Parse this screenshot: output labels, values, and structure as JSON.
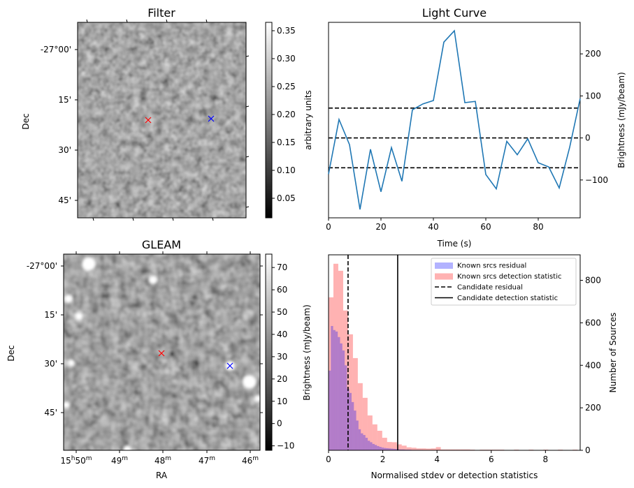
{
  "chart_data": [
    {
      "type": "heatmap",
      "title": "Filter",
      "xlabel": "",
      "ylabel": "Dec",
      "ytick_labels": [
        "-27°00'",
        "15'",
        "30'",
        "45'"
      ],
      "colorbar": {
        "label": "arbitrary units",
        "range": [
          0.015,
          0.365
        ],
        "ticks": [
          0.05,
          0.1,
          0.15,
          0.2,
          0.25,
          0.3,
          0.35
        ],
        "tick_labels": [
          "0.05",
          "0.10",
          "0.15",
          "0.20",
          "0.25",
          "0.30",
          "0.35"
        ],
        "colormap": "gray"
      },
      "markers": [
        {
          "name": "candidate",
          "symbol": "x",
          "color": "#ff0000"
        },
        {
          "name": "reference",
          "symbol": "x",
          "color": "#0000ff"
        }
      ]
    },
    {
      "type": "line",
      "title": "Light Curve",
      "xlabel": "Time (s)",
      "ylabel": "Brightness (mJy/beam)",
      "xlim": [
        0,
        96
      ],
      "ylim": [
        -190,
        275
      ],
      "xticks": [
        0,
        20,
        40,
        60,
        80
      ],
      "xtick_labels": [
        "0",
        "20",
        "40",
        "60",
        "80"
      ],
      "yticks": [
        -100,
        0,
        100,
        200
      ],
      "ytick_labels": [
        "−100",
        "0",
        "100",
        "200"
      ],
      "yaxis_side": "right",
      "grid": false,
      "series": [
        {
          "name": "light-curve",
          "color": "#1f77b4",
          "x": [
            0,
            4,
            8,
            12,
            16,
            20,
            24,
            28,
            32,
            36,
            40,
            44,
            48,
            52,
            56,
            60,
            64,
            68,
            72,
            76,
            80,
            84,
            88,
            92,
            96
          ],
          "y": [
            -86,
            44,
            -16,
            -170,
            -27,
            -128,
            -23,
            -103,
            67,
            81,
            89,
            228,
            255,
            84,
            87,
            -87,
            -121,
            -8,
            -40,
            -2,
            -59,
            -69,
            -119,
            -22,
            94
          ]
        }
      ],
      "hlines": [
        {
          "name": "upper-threshold",
          "y": 71,
          "style": "dashed",
          "color": "#000000"
        },
        {
          "name": "mean",
          "y": 0,
          "style": "dashed",
          "color": "#000000"
        },
        {
          "name": "lower-threshold",
          "y": -71,
          "style": "dashed",
          "color": "#000000"
        }
      ]
    },
    {
      "type": "heatmap",
      "title": "GLEAM",
      "xlabel": "RA",
      "ylabel": "Dec",
      "xtick_labels": [
        {
          "base": "15",
          "sup1": "h",
          "mid": "50",
          "sup2": "m"
        },
        {
          "base": "",
          "sup1": "",
          "mid": "49",
          "sup2": "m"
        },
        {
          "base": "",
          "sup1": "",
          "mid": "48",
          "sup2": "m"
        },
        {
          "base": "",
          "sup1": "",
          "mid": "47",
          "sup2": "m"
        },
        {
          "base": "",
          "sup1": "",
          "mid": "46",
          "sup2": "m"
        }
      ],
      "ytick_labels": [
        "-27°00'",
        "15'",
        "30'",
        "45'"
      ],
      "colorbar": {
        "label": "Brightness (mJy/beam)",
        "range": [
          -12,
          76
        ],
        "ticks": [
          -10,
          0,
          10,
          20,
          30,
          40,
          50,
          60,
          70
        ],
        "tick_labels": [
          "−10",
          "0",
          "10",
          "20",
          "30",
          "40",
          "50",
          "60",
          "70"
        ],
        "colormap": "gray"
      },
      "markers": [
        {
          "name": "candidate",
          "symbol": "x",
          "color": "#ff0000"
        },
        {
          "name": "reference",
          "symbol": "x",
          "color": "#0000ff"
        }
      ]
    },
    {
      "type": "bar",
      "subtype": "histogram",
      "title": "",
      "xlabel": "Normalised stdev or detection statistics",
      "ylabel": "Number of Sources",
      "xlim": [
        0,
        9.28
      ],
      "ylim": [
        0,
        920
      ],
      "xticks": [
        0,
        2,
        4,
        6,
        8
      ],
      "xtick_labels": [
        "0",
        "2",
        "4",
        "6",
        "8"
      ],
      "yticks": [
        0,
        200,
        400,
        600,
        800
      ],
      "ytick_labels": [
        "0",
        "200",
        "400",
        "600",
        "800"
      ],
      "yaxis_side": "right",
      "legend_position": "top-right",
      "series": [
        {
          "name": "Known srcs residual",
          "color": "#0000ff",
          "alpha": 0.3,
          "bin_width": 0.085,
          "bin_start": 0,
          "values": [
            375,
            585,
            566,
            559,
            533,
            503,
            470,
            400,
            290,
            270,
            227,
            187,
            140,
            99,
            80,
            72,
            59,
            45,
            38,
            30,
            25,
            20,
            16,
            13,
            11,
            10,
            9,
            8,
            7,
            6,
            5,
            4,
            4,
            3,
            3,
            3,
            2,
            2,
            2,
            2,
            2,
            1,
            1,
            1,
            1,
            1
          ]
        },
        {
          "name": "Known srcs detection statistic",
          "color": "#ff0000",
          "alpha": 0.3,
          "bin_width": 0.18,
          "bin_start": 0,
          "values": [
            720,
            878,
            845,
            658,
            546,
            434,
            316,
            247,
            164,
            122,
            92,
            59,
            39,
            38,
            28,
            22,
            14,
            12,
            9,
            9,
            8,
            9,
            15,
            4,
            4,
            4,
            4,
            4,
            4,
            3,
            0,
            3,
            3,
            3,
            3,
            3,
            0,
            0,
            3,
            0,
            0,
            3,
            0,
            0,
            3,
            0,
            0,
            3,
            0,
            0,
            3
          ]
        }
      ],
      "vlines": [
        {
          "name": "Candidate residual",
          "x": 0.72,
          "style": "dashed",
          "color": "#000000"
        },
        {
          "name": "Candidate detection statistic",
          "x": 2.55,
          "style": "solid",
          "color": "#000000"
        }
      ],
      "legend": [
        {
          "label": "Known srcs residual",
          "kind": "patch",
          "color": "#0000ff",
          "alpha": 0.3
        },
        {
          "label": "Known srcs detection statistic",
          "kind": "patch",
          "color": "#ff0000",
          "alpha": 0.3
        },
        {
          "label": "Candidate residual",
          "kind": "dashed",
          "color": "#000000"
        },
        {
          "label": "Candidate detection statistic",
          "kind": "solid",
          "color": "#000000"
        }
      ]
    }
  ]
}
